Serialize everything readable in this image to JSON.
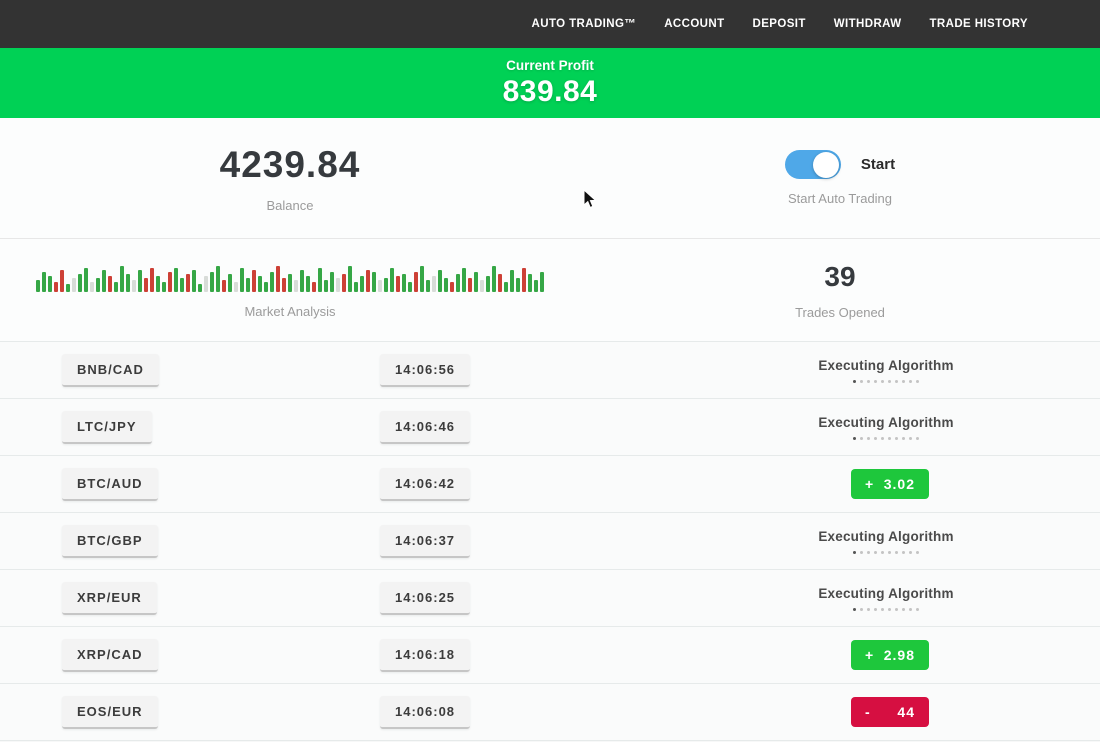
{
  "nav": {
    "items": [
      {
        "id": "auto-trading",
        "label": "AUTO TRADING™"
      },
      {
        "id": "account",
        "label": "ACCOUNT"
      },
      {
        "id": "deposit",
        "label": "DEPOSIT"
      },
      {
        "id": "withdraw",
        "label": "WITHDRAW"
      },
      {
        "id": "trade-history",
        "label": "TRADE HISTORY"
      }
    ]
  },
  "banner": {
    "label": "Current Profit",
    "value": "839.84"
  },
  "account": {
    "balance": "4239.84",
    "balance_label": "Balance",
    "toggle_label": "Start",
    "toggle_caption": "Start Auto Trading",
    "toggle_on": true
  },
  "market": {
    "label": "Market Analysis",
    "trades_opened": "39",
    "trades_label": "Trades Opened",
    "bars": [
      "g12",
      "g20",
      "g16",
      "r10",
      "r22",
      "g8",
      "l14",
      "g18",
      "g24",
      "l10",
      "g14",
      "g22",
      "r16",
      "g10",
      "g26",
      "g18",
      "l12",
      "g22",
      "r14",
      "r24",
      "g16",
      "g10",
      "r20",
      "g24",
      "g14",
      "r18",
      "g22",
      "g8",
      "l16",
      "g20",
      "g26",
      "r12",
      "g18",
      "l10",
      "g24",
      "g14",
      "r22",
      "g16",
      "g10",
      "g20",
      "r26",
      "r14",
      "g18",
      "l12",
      "g22",
      "g16",
      "r10",
      "g24",
      "g12",
      "g20",
      "l14",
      "r18",
      "g26",
      "g10",
      "g16",
      "r22",
      "g20",
      "l12",
      "g14",
      "g24",
      "r16",
      "g18",
      "g10",
      "r20",
      "g26",
      "g12",
      "l16",
      "g22",
      "g14",
      "r10",
      "g18",
      "g24",
      "r14",
      "g20",
      "l12",
      "g16",
      "g26",
      "r18",
      "g10",
      "g22",
      "g14",
      "r24",
      "g18",
      "g12",
      "g20"
    ]
  },
  "colors": {
    "nav_bg": "#333333",
    "banner_green": "#00d155",
    "toggle_blue": "#4fa8e8",
    "profit_green": "#1ec73c",
    "loss_red": "#d60f41",
    "bar_green": "#36a746",
    "bar_red": "#cd4036"
  },
  "trades": {
    "rows": [
      {
        "pair": "BNB/CAD",
        "time": "14:06:56",
        "status": {
          "type": "executing",
          "label": "Executing Algorithm",
          "dots_total": 10,
          "dots_active": 1
        }
      },
      {
        "pair": "LTC/JPY",
        "time": "14:06:46",
        "status": {
          "type": "executing",
          "label": "Executing Algorithm",
          "dots_total": 10,
          "dots_active": 1
        }
      },
      {
        "pair": "BTC/AUD",
        "time": "14:06:42",
        "status": {
          "type": "profit",
          "sign": "+",
          "value": "3.02"
        }
      },
      {
        "pair": "BTC/GBP",
        "time": "14:06:37",
        "status": {
          "type": "executing",
          "label": "Executing Algorithm",
          "dots_total": 10,
          "dots_active": 1
        }
      },
      {
        "pair": "XRP/EUR",
        "time": "14:06:25",
        "status": {
          "type": "executing",
          "label": "Executing Algorithm",
          "dots_total": 10,
          "dots_active": 1
        }
      },
      {
        "pair": "XRP/CAD",
        "time": "14:06:18",
        "status": {
          "type": "profit",
          "sign": "+",
          "value": "2.98"
        }
      },
      {
        "pair": "EOS/EUR",
        "time": "14:06:08",
        "status": {
          "type": "loss",
          "sign": "-",
          "value": "44"
        }
      }
    ]
  }
}
